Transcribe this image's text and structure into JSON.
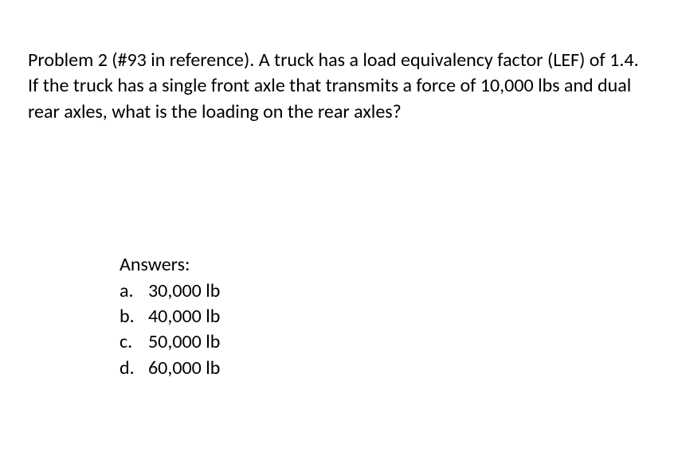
{
  "problem": {
    "text": "Problem 2 (#93 in reference).  A truck has a load equivalency factor (LEF) of 1.4. If the truck has a single front axle that transmits a force of 10,000 lbs and dual rear axles, what is the loading on the rear axles?",
    "text_color": "#000000",
    "background_color": "#ffffff",
    "font_size": 24,
    "font_family": "Calibri"
  },
  "answers": {
    "heading": "Answers:",
    "options": [
      {
        "letter": "a.",
        "value": "30,000 lb"
      },
      {
        "letter": "b.",
        "value": "40,000 lb"
      },
      {
        "letter": "c.",
        "value": "50,000 lb"
      },
      {
        "letter": "d.",
        "value": "60,000 lb"
      }
    ],
    "text_color": "#000000",
    "font_size": 24
  }
}
